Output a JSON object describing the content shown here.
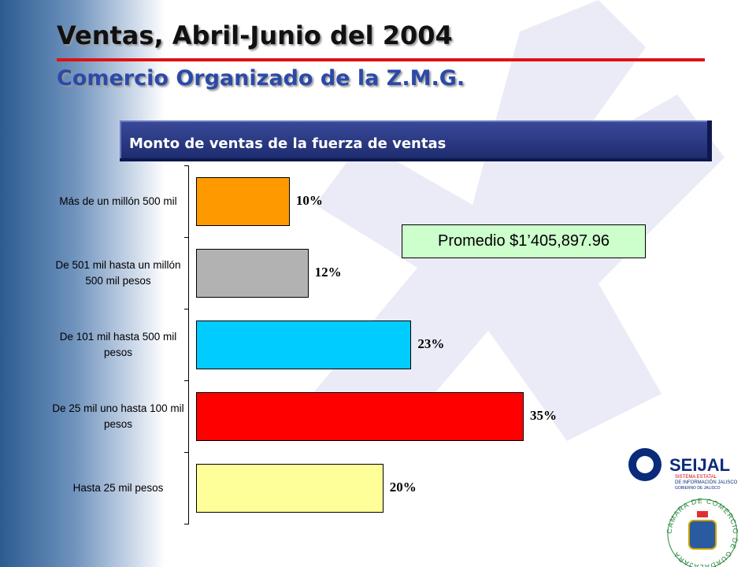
{
  "chart_data": {
    "type": "bar",
    "orientation": "horizontal",
    "title": "Ventas, Abril-Junio del 2004",
    "subtitle": "Comercio Organizado de la Z.M.G.",
    "chart_header": "Monto de ventas de la fuerza de ventas",
    "annotation": "Promedio $1’405,897.96",
    "categories": [
      "Más de un millón 500 mil",
      "De 501 mil hasta un millón 500 mil pesos",
      "De 101 mil hasta 500 mil pesos",
      "De 25 mil uno hasta 100 mil pesos",
      "Hasta 25 mil pesos"
    ],
    "values": [
      10,
      12,
      23,
      35,
      20
    ],
    "value_labels": [
      "10%",
      "12%",
      "23%",
      "35%",
      "20%"
    ],
    "colors": [
      "#ff9900",
      "#b2b2b2",
      "#00ccff",
      "#ff0000",
      "#ffff99"
    ]
  },
  "logos": {
    "seijal": "SEIJAL",
    "seijal_line1": "SISTEMA ESTATAL",
    "seijal_line2": "DE INFORMACIÓN JALISCO",
    "seijal_line3": "GOBIERNO DE JALISCO",
    "camara": "CAMARA DE COMERCIO DE GUADALAJARA"
  }
}
